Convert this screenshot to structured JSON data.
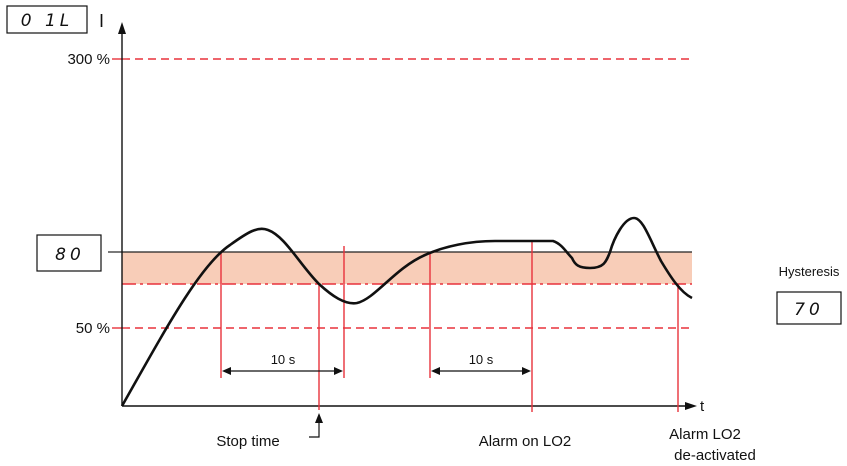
{
  "display_oil": "0 1L",
  "axis_i_label": "I",
  "axis_t_label": "t",
  "level_300": "300 %",
  "level_50": "50 %",
  "display_threshold": "80",
  "hysteresis_label": "Hysteresis",
  "display_hysteresis": "70",
  "interval_1": "10 s",
  "interval_2": "10 s",
  "stop_time_label": "Stop time",
  "alarm_on_label": "Alarm on LO2",
  "alarm_off_line1": "Alarm LO2",
  "alarm_off_line2": "de-activated",
  "colors": {
    "red": "#e8323c",
    "band": "#f8cdb8",
    "ink": "#111111"
  }
}
